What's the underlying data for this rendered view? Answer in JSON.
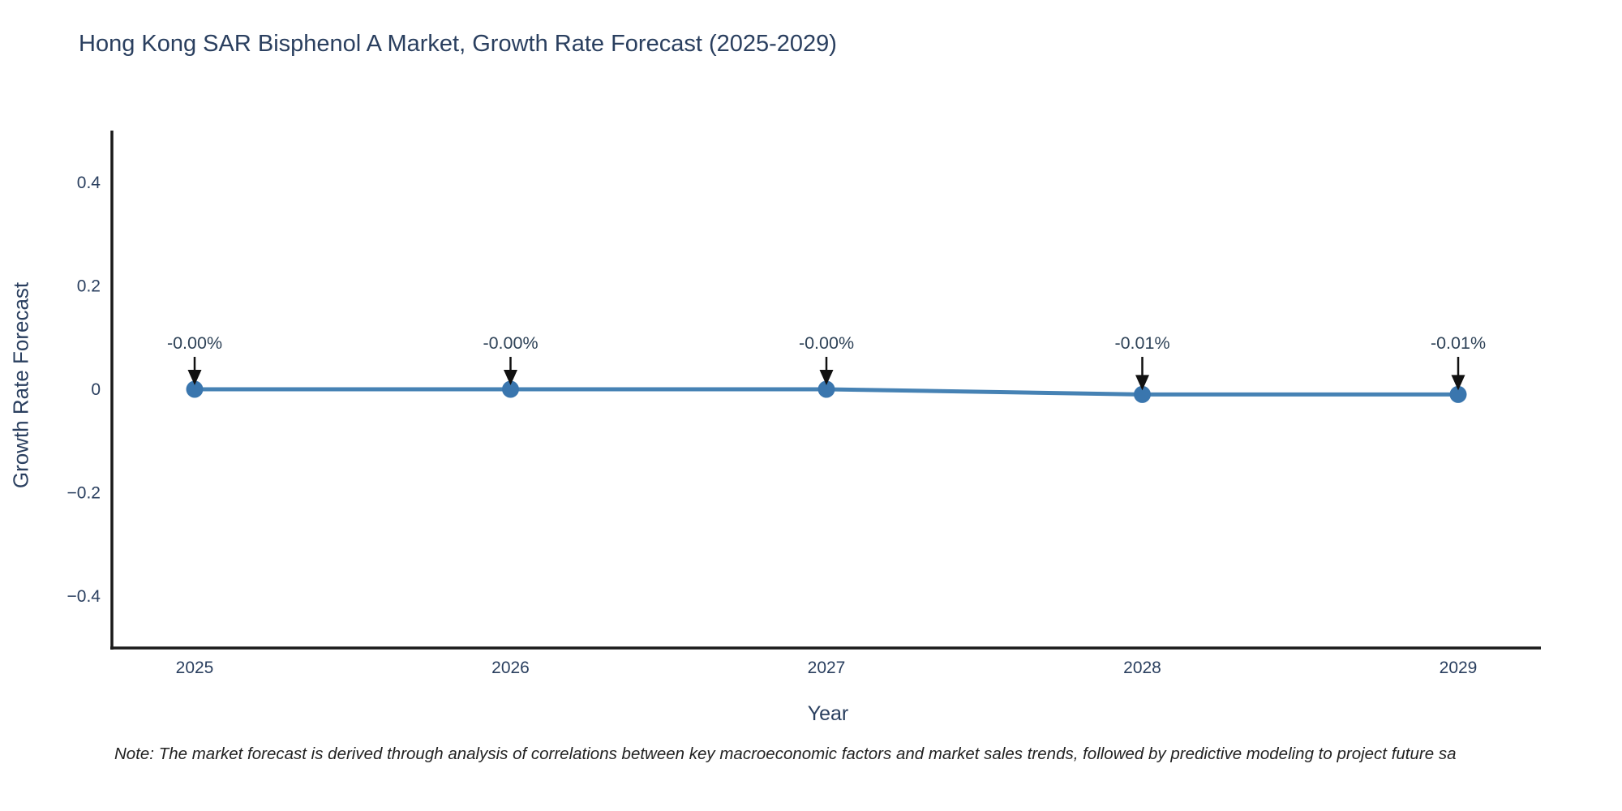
{
  "chart": {
    "title": "Hong Kong SAR Bisphenol A Market, Growth Rate Forecast (2025-2029)",
    "note": "Note: The market forecast is derived through analysis of correlations between key macroeconomic factors and market sales trends, followed by predictive modeling to project future sa",
    "colors": {
      "text": "#2a3f5f",
      "annotation_text": "#2f4358",
      "line": "#4682b4",
      "marker": "#3a76ae",
      "axis": "#1a1a1a",
      "arrow": "#111111",
      "background": "#ffffff"
    }
  },
  "chart_data": {
    "type": "line",
    "title": "Hong Kong SAR Bisphenol A Market, Growth Rate Forecast (2025-2029)",
    "xlabel": "Year",
    "ylabel": "Growth Rate Forecast",
    "categories": [
      "2025",
      "2026",
      "2027",
      "2028",
      "2029"
    ],
    "series": [
      {
        "name": "Growth Rate Forecast",
        "values": [
          -0.0,
          -0.0,
          -0.0,
          -0.01,
          -0.01
        ],
        "point_labels": [
          "-0.00%",
          "-0.00%",
          "-0.00%",
          "-0.01%",
          "-0.01%"
        ]
      }
    ],
    "ylim": [
      -0.5,
      0.5
    ],
    "yticks": [
      0.4,
      0.2,
      0,
      -0.2,
      -0.4
    ],
    "ytick_labels": [
      "0.4",
      "0.2",
      "0",
      "−0.2",
      "−0.4"
    ],
    "grid": false,
    "legend": false,
    "annotations": "value labels with downward black arrows above each point"
  }
}
